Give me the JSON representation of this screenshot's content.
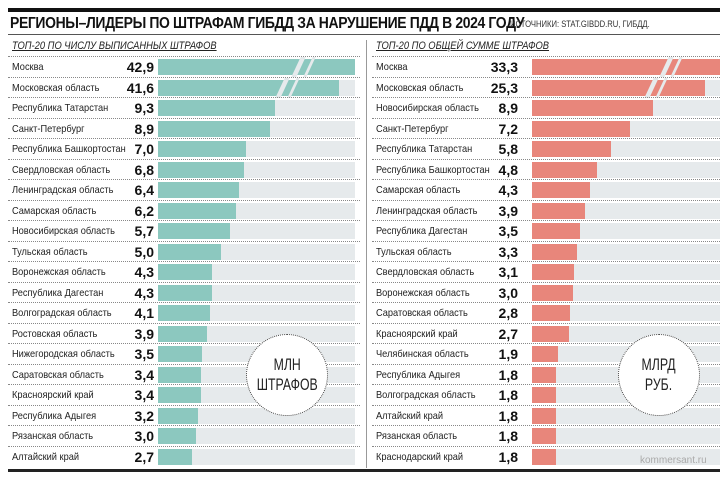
{
  "title": "РЕГИОНЫ–ЛИДЕРЫ ПО ШТРАФАМ ГИБДД ЗА НАРУШЕНИЕ ПДД В 2024 ГОДУ",
  "sources": "ИСТОЧНИКИ: STAT.GIBDD.RU, ГИБДД.",
  "credit": "kommersant.ru",
  "colors": {
    "left": "#8cc8bf",
    "right": "#e8867b"
  },
  "chart_data": [
    {
      "type": "bar",
      "orientation": "horizontal",
      "title": "ТОП-20 ПО ЧИСЛУ ВЫПИСАННЫХ ШТРАФОВ",
      "unit_line1": "МЛН",
      "unit_line2": "ШТРАФОВ",
      "broken_bars": [
        "Москва",
        "Московская область"
      ],
      "categories": [
        "Москва",
        "Московская область",
        "Республика Татарстан",
        "Санкт-Петербург",
        "Республика Башкортостан",
        "Свердловская область",
        "Ленинградская область",
        "Самарская область",
        "Новосибирская область",
        "Тульская область",
        "Воронежская область",
        "Республика Дагестан",
        "Волгоградская область",
        "Ростовская область",
        "Нижегородская область",
        "Саратовская область",
        "Красноярский край",
        "Республика Адыгея",
        "Рязанская область",
        "Алтайский край"
      ],
      "labels": [
        "42,9",
        "41,6",
        "9,3",
        "8,9",
        "7,0",
        "6,8",
        "6,4",
        "6,2",
        "5,7",
        "5,0",
        "4,3",
        "4,3",
        "4,1",
        "3,9",
        "3,5",
        "3,4",
        "3,4",
        "3,2",
        "3,0",
        "2,7"
      ],
      "values": [
        42.9,
        41.6,
        9.3,
        8.9,
        7.0,
        6.8,
        6.4,
        6.2,
        5.7,
        5.0,
        4.3,
        4.3,
        4.1,
        3.9,
        3.5,
        3.4,
        3.4,
        3.2,
        3.0,
        2.7
      ]
    },
    {
      "type": "bar",
      "orientation": "horizontal",
      "title": "ТОП-20 ПО ОБЩЕЙ СУММЕ ШТРАФОВ",
      "unit_line1": "МЛРД",
      "unit_line2": "РУБ.",
      "broken_bars": [
        "Москва",
        "Московская область"
      ],
      "categories": [
        "Москва",
        "Московская область",
        "Новосибирская область",
        "Санкт-Петербург",
        "Республика Татарстан",
        "Республика Башкортостан",
        "Самарская область",
        "Ленинградская область",
        "Республика Дагестан",
        "Тульская область",
        "Свердловская область",
        "Воронежская область",
        "Саратовская область",
        "Красноярский край",
        "Челябинская область",
        "Республика Адыгея",
        "Волгоградская область",
        "Алтайский край",
        "Рязанская область",
        "Краснодарский край"
      ],
      "labels": [
        "33,3",
        "25,3",
        "8,9",
        "7,2",
        "5,8",
        "4,8",
        "4,3",
        "3,9",
        "3,5",
        "3,3",
        "3,1",
        "3,0",
        "2,8",
        "2,7",
        "1,9",
        "1,8",
        "1,8",
        "1,8",
        "1,8",
        "1,8"
      ],
      "values": [
        33.3,
        25.3,
        8.9,
        7.2,
        5.8,
        4.8,
        4.3,
        3.9,
        3.5,
        3.3,
        3.1,
        3.0,
        2.8,
        2.7,
        1.9,
        1.8,
        1.8,
        1.8,
        1.8,
        1.8
      ]
    }
  ]
}
